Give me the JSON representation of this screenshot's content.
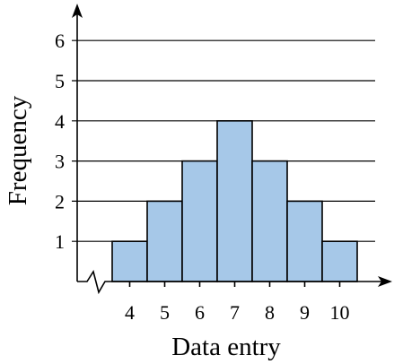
{
  "chart_data": {
    "type": "bar",
    "subtype": "histogram",
    "title": "",
    "xlabel": "Data entry",
    "ylabel": "Frequency",
    "categories": [
      "4",
      "5",
      "6",
      "7",
      "8",
      "9",
      "10"
    ],
    "values": [
      1,
      2,
      3,
      4,
      3,
      2,
      1
    ],
    "ylim": [
      0,
      6
    ],
    "yticks": [
      "1",
      "2",
      "3",
      "4",
      "5",
      "6"
    ],
    "grid": true,
    "axis_break": true,
    "colors": {
      "bar_fill": "#a6c8e8",
      "stroke": "#000000"
    }
  }
}
